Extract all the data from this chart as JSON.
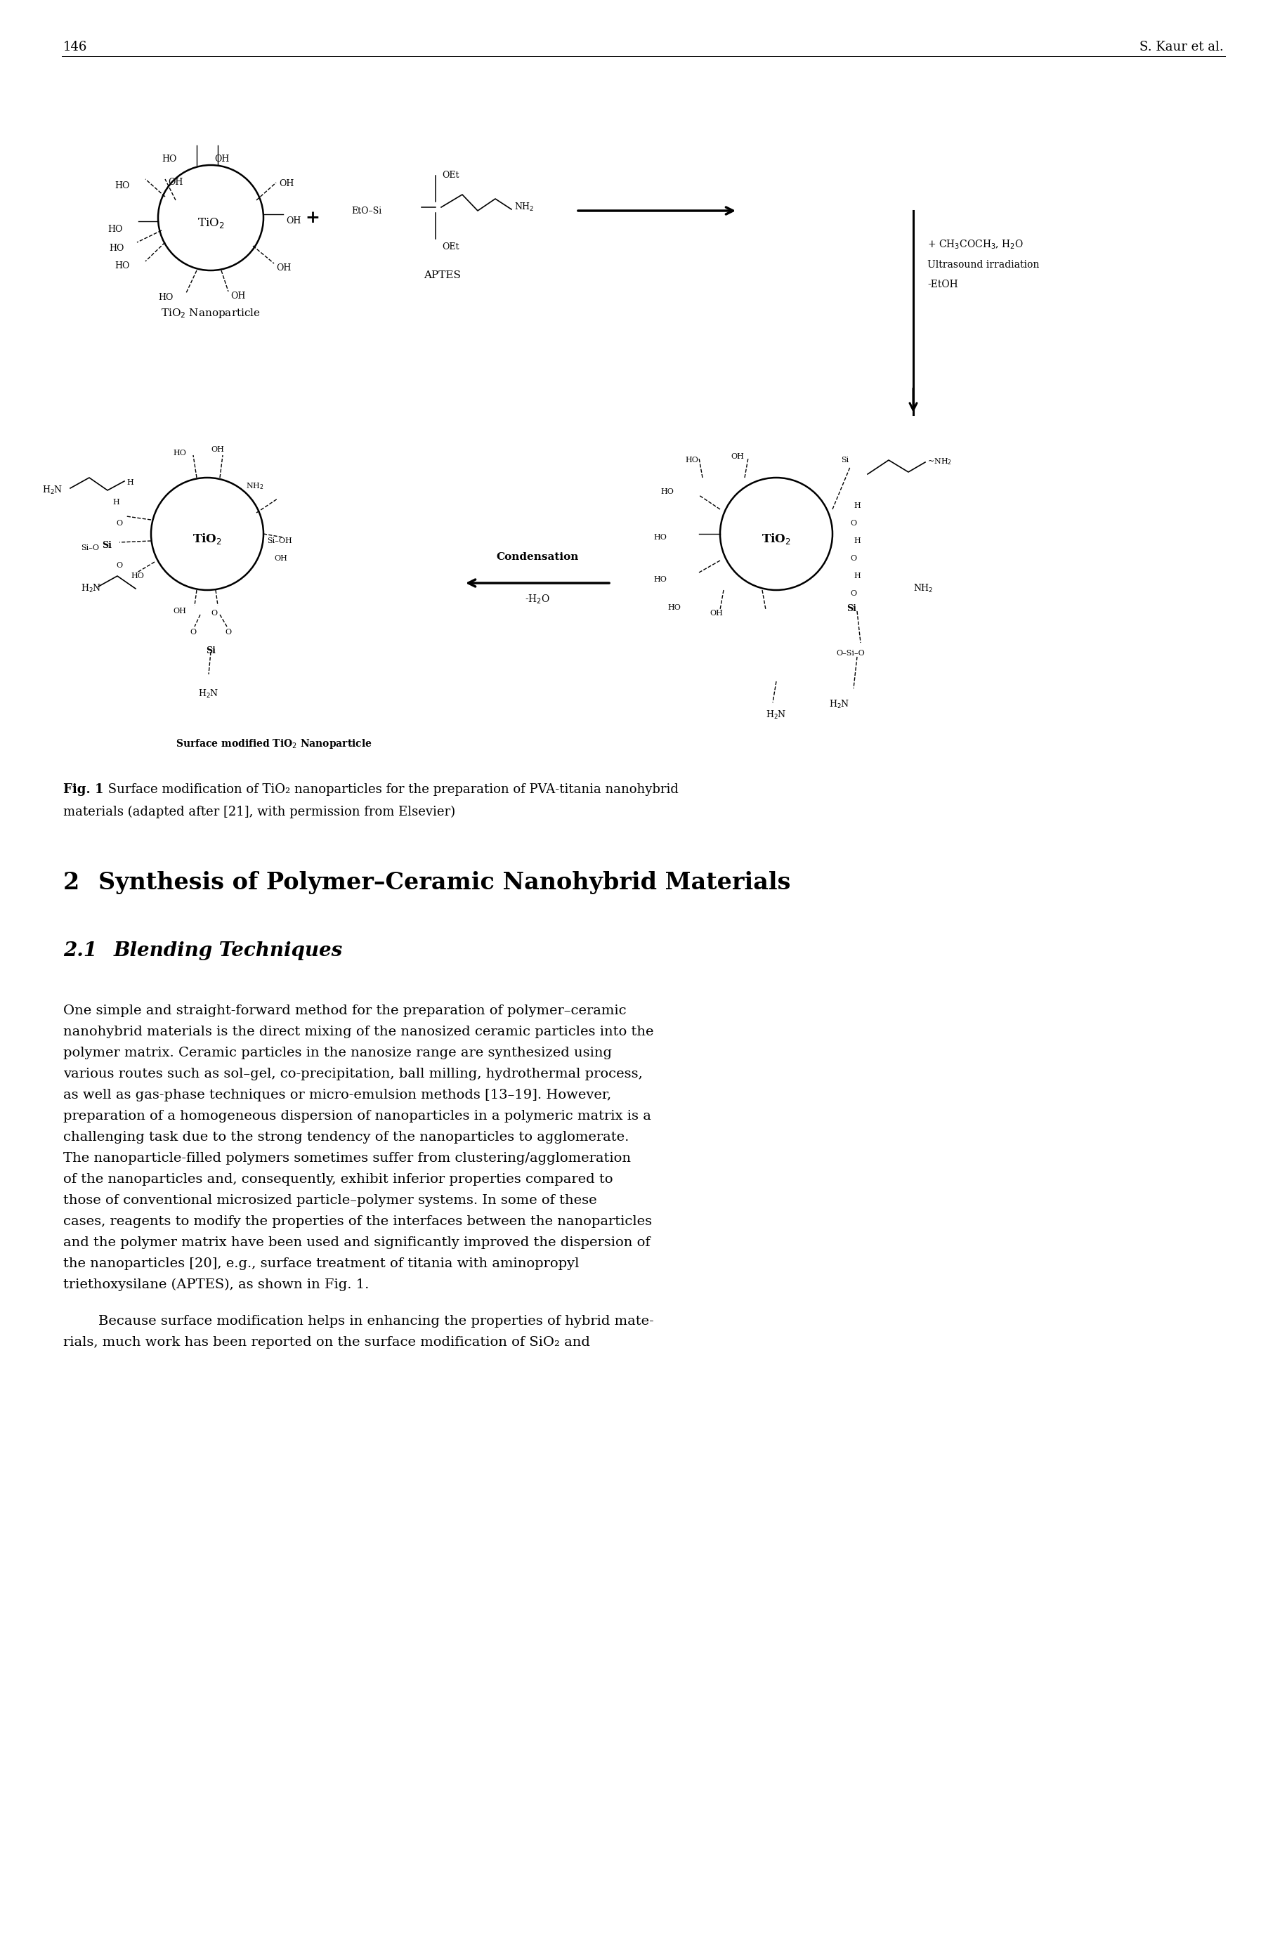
{
  "page_number": "146",
  "author": "S. Kaur et al.",
  "background_color": "#ffffff",
  "fig_caption_bold": "Fig. 1",
  "fig_caption_text": " Surface modification of TiO₂ nanoparticles for the preparation of PVA-titania nanohybrid",
  "fig_caption_text2": "materials (adapted after [21], with permission from Elsevier)",
  "section_number": "2",
  "section_title": "Synthesis of Polymer–Ceramic Nanohybrid Materials",
  "subsection_number": "2.1",
  "subsection_title": "Blending Techniques",
  "para1_lines": [
    "One simple and straight-forward method for the preparation of polymer–ceramic",
    "nanohybrid materials is the direct mixing of the nanosized ceramic particles into the",
    "polymer matrix. Ceramic particles in the nanosize range are synthesized using",
    "various routes such as sol–gel, co-precipitation, ball milling, hydrothermal process,",
    "as well as gas-phase techniques or micro-emulsion methods [13–19]. However,",
    "preparation of a homogeneous dispersion of nanoparticles in a polymeric matrix is a",
    "challenging task due to the strong tendency of the nanoparticles to agglomerate.",
    "The nanoparticle-filled polymers sometimes suffer from clustering/agglomeration",
    "of the nanoparticles and, consequently, exhibit inferior properties compared to",
    "those of conventional microsized particle–polymer systems. In some of these",
    "cases, reagents to modify the properties of the interfaces between the nanoparticles",
    "and the polymer matrix have been used and significantly improved the dispersion of",
    "the nanoparticles [20], e.g., surface treatment of titania with aminopropyl",
    "triethoxysilane (APTES), as shown in Fig. 1."
  ],
  "para2_lines": [
    "        Because surface modification helps in enhancing the properties of hybrid mate-",
    "rials, much work has been reported on the surface modification of SiO₂ and"
  ]
}
